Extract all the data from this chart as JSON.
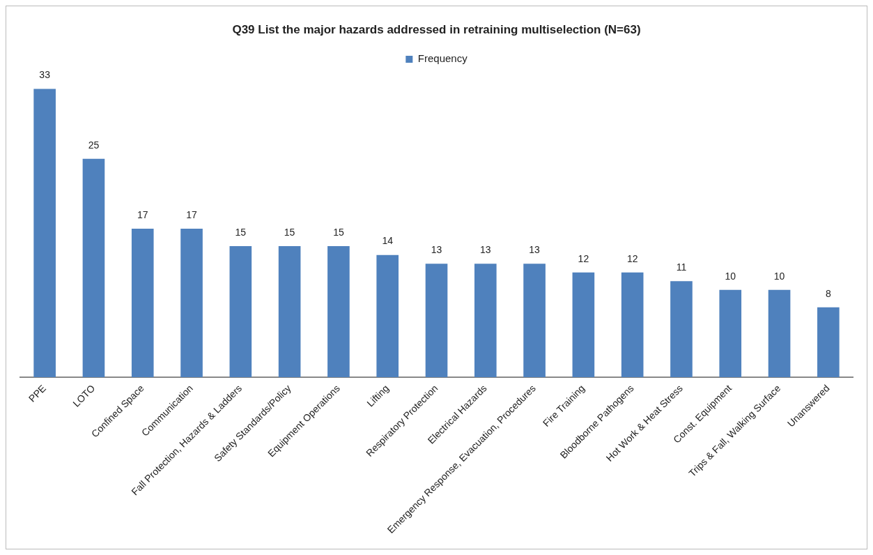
{
  "chart_data": {
    "type": "bar",
    "title": "Q39 List the major hazards addressed in retraining multiselection (N=63)",
    "categories": [
      "PPE",
      "LOTO",
      "Confined Space",
      "Communication",
      "Fall Protection, Hazards & Ladders",
      "Safety Standards/Policy",
      "Equipment Operations",
      "Lifting",
      "Respiratory Protection",
      "Electrical Hazards",
      "Emergency Response, Evacuation, Procedures",
      "Fire Training",
      "Bloodborne Pathogens",
      "Hot Work & Heat Stress",
      "Const. Equipment",
      "Trips & Fall, Walking Surface",
      "Unanswered"
    ],
    "series": [
      {
        "name": "Frequency",
        "color": "#4f81bd",
        "values": [
          33,
          25,
          17,
          17,
          15,
          15,
          15,
          14,
          13,
          13,
          13,
          12,
          12,
          11,
          10,
          10,
          8
        ]
      }
    ],
    "data_labels": true,
    "legend": "top",
    "grid": false
  }
}
